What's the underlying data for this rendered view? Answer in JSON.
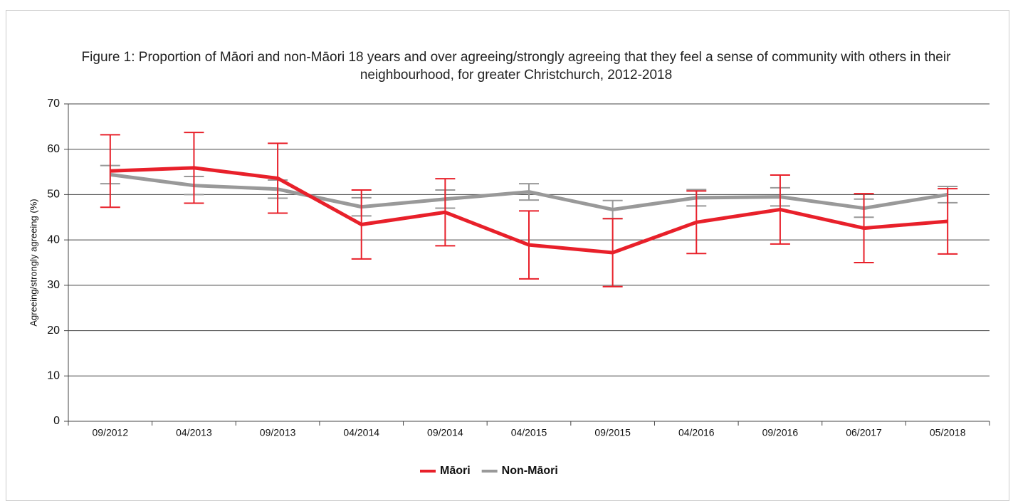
{
  "chart_data": {
    "type": "line",
    "title": "Figure 1: Proportion of Māori and non-Māori 18 years and over agreeing/strongly agreeing that they feel a sense of community with others in their neighbourhood, for greater Christchurch, 2012-2018",
    "y_label": "Agreeing/strongly agreeing (%)",
    "categories": [
      "09/2012",
      "04/2013",
      "09/2013",
      "04/2014",
      "09/2014",
      "04/2015",
      "09/2015",
      "04/2016",
      "09/2016",
      "06/2017",
      "05/2018"
    ],
    "series": [
      {
        "name": "Māori",
        "color": "#e8202a",
        "values": [
          55.2,
          55.9,
          53.6,
          43.4,
          46.1,
          38.9,
          37.2,
          43.9,
          46.7,
          42.6,
          44.1
        ],
        "errors": [
          8,
          7.8,
          7.7,
          7.6,
          7.4,
          7.5,
          7.5,
          6.9,
          7.6,
          7.6,
          7.2
        ]
      },
      {
        "name": "Non-Māori",
        "color": "#999999",
        "values": [
          54.4,
          52,
          51.2,
          47.3,
          49,
          50.6,
          46.7,
          49.3,
          49.5,
          47,
          50
        ],
        "errors": [
          2,
          2,
          2,
          2,
          2,
          1.8,
          2,
          1.8,
          2,
          2,
          1.8
        ]
      }
    ],
    "ylim": [
      0,
      70
    ],
    "yticks": [
      0,
      10,
      20,
      30,
      40,
      50,
      60,
      70
    ],
    "grid": true,
    "legend": "bottom"
  }
}
